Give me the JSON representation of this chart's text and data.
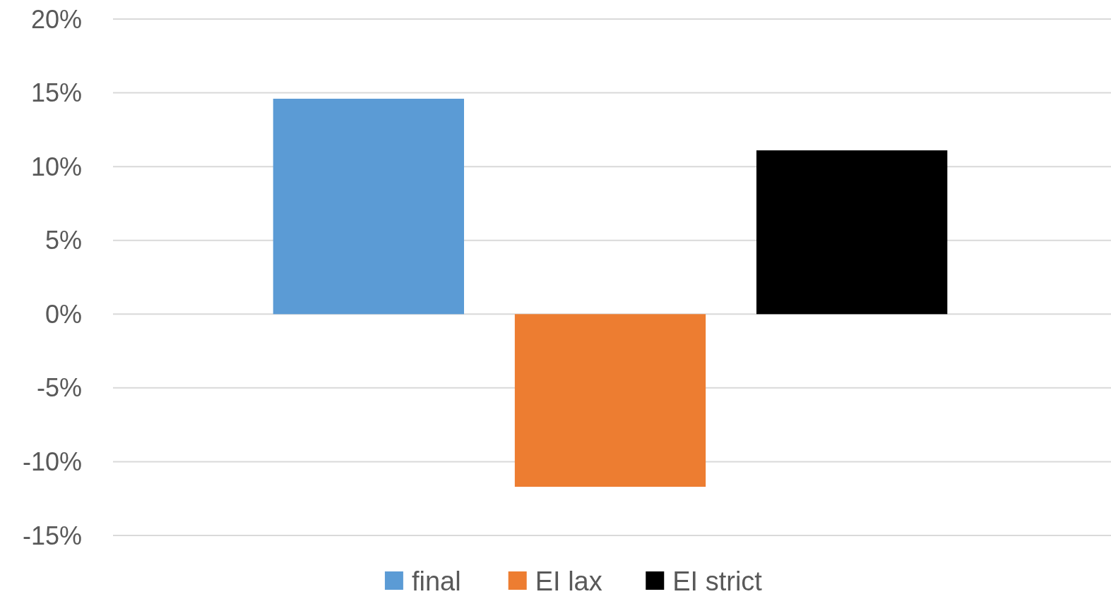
{
  "chart_data": {
    "type": "bar",
    "categories": [
      null
    ],
    "series": [
      {
        "name": "final",
        "color": "#5b9bd5",
        "values": [
          14.6
        ]
      },
      {
        "name": "EI lax",
        "color": "#ed7d31",
        "values": [
          -11.7
        ]
      },
      {
        "name": "EI strict",
        "color": "#000000",
        "values": [
          11.1
        ]
      }
    ],
    "ylim": [
      -15,
      20
    ],
    "yticks": [
      {
        "value": -15,
        "label": "-15%"
      },
      {
        "value": -10,
        "label": "-10%"
      },
      {
        "value": -5,
        "label": "-5%"
      },
      {
        "value": 0,
        "label": "0%"
      },
      {
        "value": 5,
        "label": "5%"
      },
      {
        "value": 10,
        "label": "10%"
      },
      {
        "value": 15,
        "label": "15%"
      },
      {
        "value": 20,
        "label": "20%"
      }
    ],
    "grid": "y",
    "legend": "bottom"
  }
}
